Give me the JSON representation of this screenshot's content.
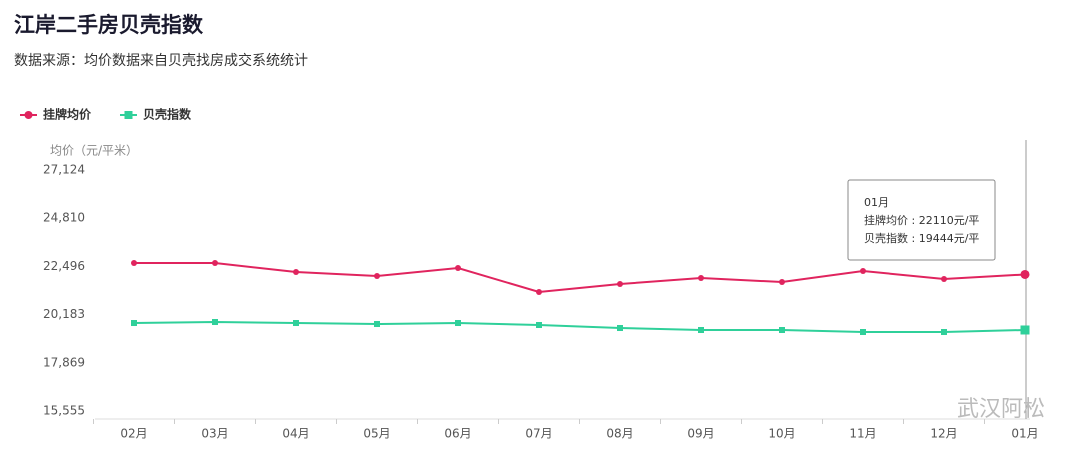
{
  "chart_data": {
    "type": "line",
    "title": "江岸二手房贝壳指数",
    "subtitle": "数据来源：均价数据来自贝壳找房成交系统统计",
    "y_axis_label": "均价（元/平米）",
    "categories": [
      "02月",
      "03月",
      "04月",
      "05月",
      "06月",
      "07月",
      "08月",
      "09月",
      "10月",
      "11月",
      "12月",
      "01月"
    ],
    "series": [
      {
        "name": "挂牌均价",
        "color": "#e0245e",
        "marker": "circle",
        "values": [
          22659,
          22659,
          22227,
          22035,
          22419,
          21267,
          21651,
          21939,
          21747,
          22275,
          21891,
          22110
        ]
      },
      {
        "name": "贝壳指数",
        "color": "#2fd09a",
        "marker": "square",
        "values": [
          19779,
          19827,
          19779,
          19731,
          19779,
          19683,
          19539,
          19443,
          19443,
          19347,
          19347,
          19444
        ]
      }
    ],
    "ylim": [
      15555,
      27124
    ],
    "yticks": [
      {
        "value": 15555,
        "label": "15,555"
      },
      {
        "value": 17869,
        "label": "17,869"
      },
      {
        "value": 20183,
        "label": "20,183"
      },
      {
        "value": 22496,
        "label": "22,496"
      },
      {
        "value": 24810,
        "label": "24,810"
      },
      {
        "value": 27124,
        "label": "27,124"
      }
    ],
    "grid": false,
    "legend_position": "top-left",
    "tooltip": {
      "title": "01月",
      "lines": [
        "挂牌均价 : 22110元/平",
        "贝壳指数 : 19444元/平"
      ]
    },
    "watermark": "武汉阿松"
  }
}
